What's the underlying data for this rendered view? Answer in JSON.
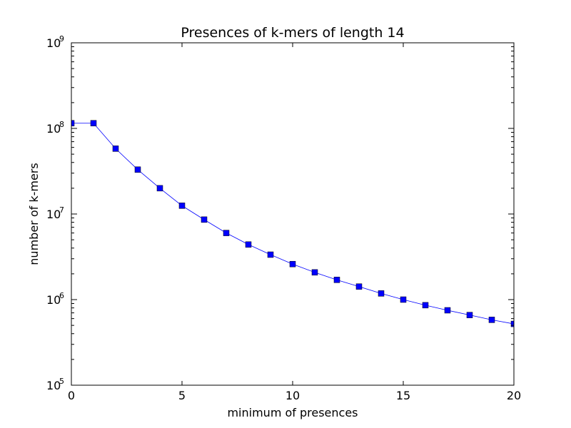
{
  "chart_data": {
    "type": "line",
    "title": "Presences of k-mers of length 14",
    "xlabel": "minimum of presences",
    "ylabel": "number of k-mers",
    "xlim": [
      0,
      20
    ],
    "ylim": [
      100000,
      1000000000
    ],
    "yscale": "log",
    "xticks": [
      0,
      5,
      10,
      15,
      20
    ],
    "yticks": [
      {
        "base": "10",
        "exp": "5"
      },
      {
        "base": "10",
        "exp": "6"
      },
      {
        "base": "10",
        "exp": "7"
      },
      {
        "base": "10",
        "exp": "8"
      },
      {
        "base": "10",
        "exp": "9"
      }
    ],
    "grid": false,
    "marker": "square",
    "series": [
      {
        "color": "#0000ff",
        "x": [
          0,
          1,
          2,
          3,
          4,
          5,
          6,
          7,
          8,
          9,
          10,
          11,
          12,
          13,
          14,
          15,
          16,
          17,
          18,
          19,
          20
        ],
        "y": [
          115000000,
          115000000,
          58000000,
          33000000,
          20000000,
          12500000,
          8600000,
          6000000,
          4400000,
          3350000,
          2600000,
          2080000,
          1700000,
          1420000,
          1180000,
          1000000,
          860000,
          750000,
          660000,
          580000,
          520000
        ]
      }
    ]
  }
}
